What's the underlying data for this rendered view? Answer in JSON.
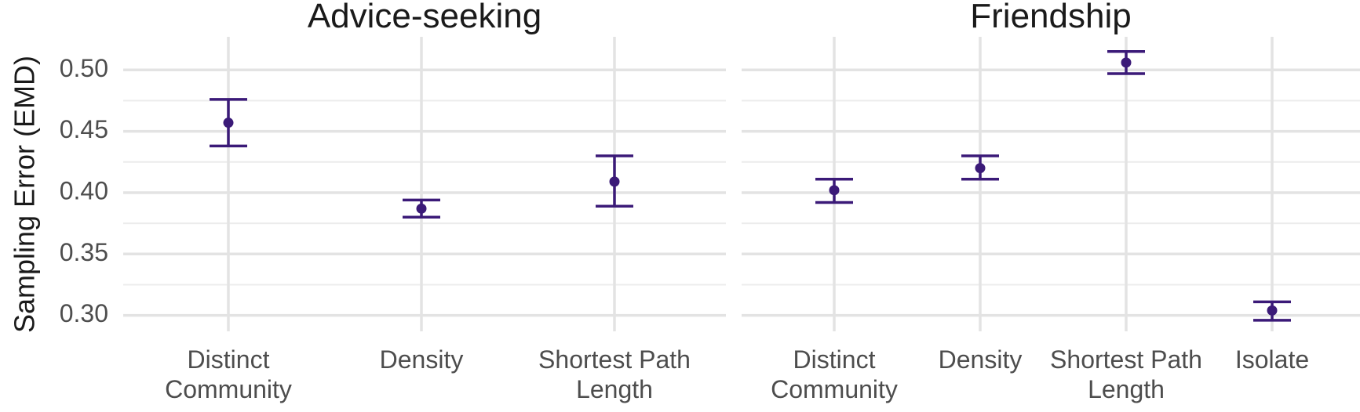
{
  "chart_data": {
    "type": "scatter",
    "subtype": "point-errorbar",
    "ylabel": "Sampling Error (EMD)",
    "ylim": [
      0.287,
      0.527
    ],
    "yticks": [
      "0.30",
      "0.35",
      "0.40",
      "0.45",
      "0.50"
    ],
    "ytick_values": [
      0.3,
      0.35,
      0.4,
      0.45,
      0.5
    ],
    "color": "#3b1a78",
    "grid": true,
    "facets": [
      {
        "title": "Advice-seeking",
        "categories": [
          {
            "lines": [
              "Distinct",
              "Community"
            ]
          },
          {
            "lines": [
              "Density"
            ]
          },
          {
            "lines": [
              "Shortest Path",
              "Length"
            ]
          }
        ],
        "values": [
          0.457,
          0.387,
          0.409
        ],
        "lower": [
          0.438,
          0.38,
          0.389
        ],
        "upper": [
          0.476,
          0.394,
          0.43
        ]
      },
      {
        "title": "Friendship",
        "categories": [
          {
            "lines": [
              "Distinct",
              "Community"
            ]
          },
          {
            "lines": [
              "Density"
            ]
          },
          {
            "lines": [
              "Shortest Path",
              "Length"
            ]
          },
          {
            "lines": [
              "Isolate"
            ]
          }
        ],
        "values": [
          0.402,
          0.42,
          0.506,
          0.304
        ],
        "lower": [
          0.392,
          0.411,
          0.497,
          0.296
        ],
        "upper": [
          0.411,
          0.43,
          0.515,
          0.311
        ]
      }
    ]
  }
}
